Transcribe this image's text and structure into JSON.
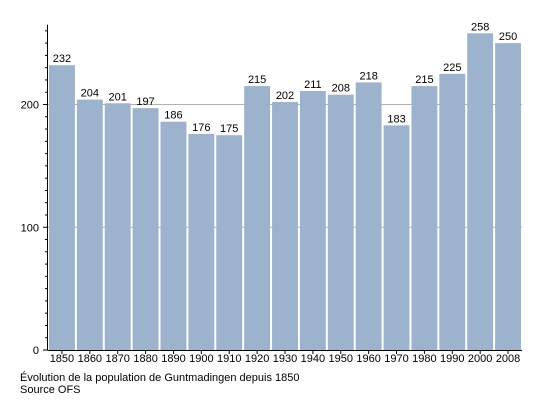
{
  "chart_data": {
    "type": "bar",
    "categories": [
      "1850",
      "1860",
      "1870",
      "1880",
      "1890",
      "1900",
      "1910",
      "1920",
      "1930",
      "1940",
      "1950",
      "1960",
      "1970",
      "1980",
      "1990",
      "2000",
      "2008"
    ],
    "values": [
      232,
      204,
      201,
      197,
      186,
      176,
      175,
      215,
      202,
      211,
      208,
      218,
      183,
      215,
      225,
      258,
      250
    ],
    "y_ticks": [
      0,
      100,
      200
    ],
    "ylim": [
      0,
      265
    ],
    "grid": true,
    "bar_color": "#9db2cc",
    "grid_color": "#b0b0b0",
    "caption": "Évolution de la population de Guntmadingen depuis 1850",
    "source": "Source OFS"
  }
}
